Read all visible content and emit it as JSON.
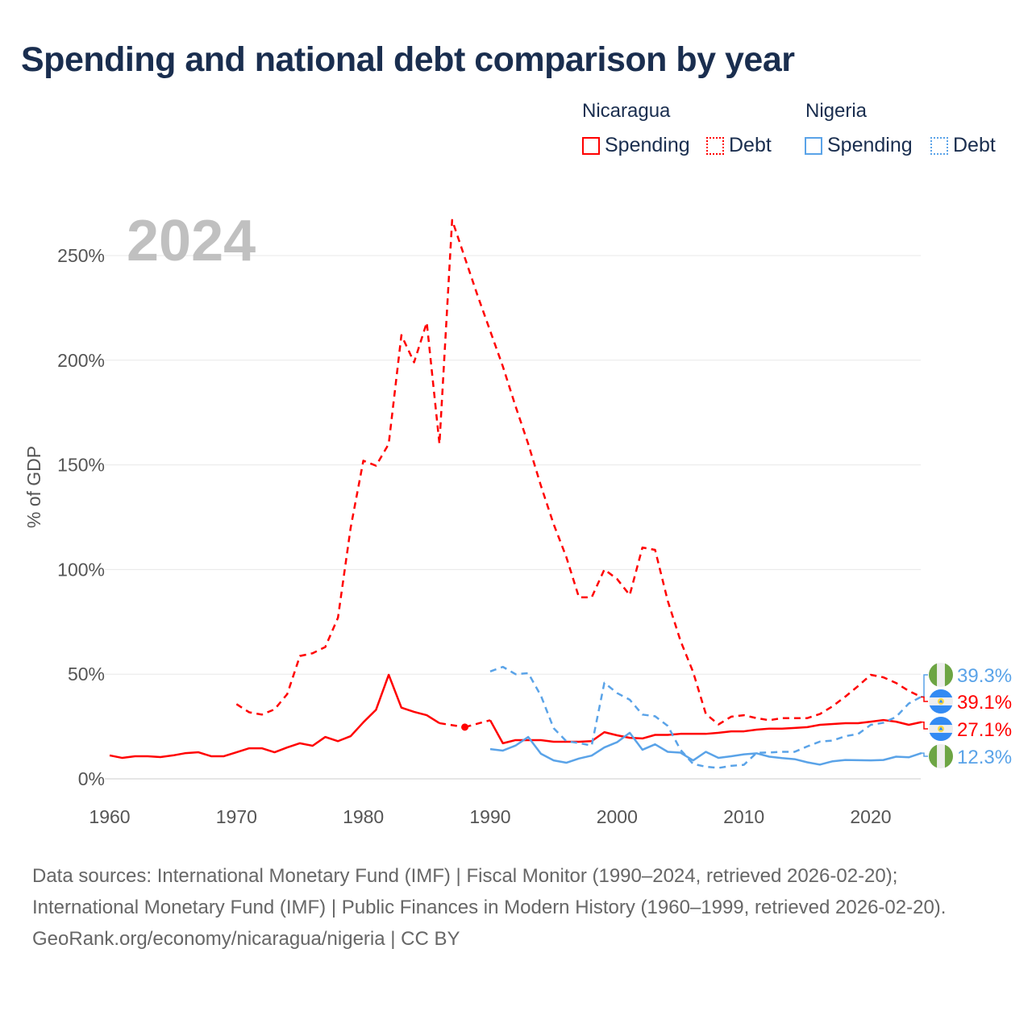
{
  "title": "Spending and national debt comparison by year",
  "legend": {
    "groups": [
      {
        "country": "Nicaragua",
        "color": "#ff0000",
        "items": [
          "Spending",
          "Debt"
        ]
      },
      {
        "country": "Nigeria",
        "color": "#5aa3e8",
        "items": [
          "Spending",
          "Debt"
        ]
      }
    ]
  },
  "footer": {
    "sources": "Data sources: International Monetary Fund (IMF) | Fiscal Monitor (1990–2024, retrieved 2026-02-20); International Monetary Fund (IMF) | Public Finances in Modern History (1960–1999, retrieved 2026-02-20).",
    "credit": "GeoRank.org/economy/nicaragua/nigeria | CC BY"
  },
  "chart_data": {
    "type": "line",
    "title": "Spending and national debt comparison by year",
    "year_watermark": "2024",
    "xlabel": "",
    "ylabel": "% of GDP",
    "xlim": [
      1960,
      2024
    ],
    "ylim": [
      0,
      260
    ],
    "x_ticks": [
      1960,
      1970,
      1980,
      1990,
      2000,
      2010,
      2020
    ],
    "y_ticks": [
      0,
      50,
      100,
      150,
      200,
      250
    ],
    "y_tick_labels": [
      "0%",
      "50%",
      "100%",
      "150%",
      "200%",
      "250%"
    ],
    "grid": true,
    "legend_position": "top-right",
    "series": [
      {
        "name": "Nicaragua Spending",
        "color": "#ff0000",
        "style": "solid",
        "start": 1960,
        "values": [
          11.2,
          10,
          10.8,
          10.8,
          10.4,
          11.2,
          12.3,
          12.7,
          10.8,
          10.8,
          12.7,
          14.6,
          14.6,
          12.7,
          15,
          17,
          15.8,
          20,
          18,
          20.4,
          27,
          33,
          49.7,
          34,
          32,
          30.4,
          26.6,
          null,
          24.7,
          null,
          28,
          17,
          18.5,
          18.5,
          18.5,
          17.7,
          17.7,
          17.7,
          18,
          22.3,
          20.8,
          19.6,
          19.3,
          21,
          21,
          21.5,
          21.5,
          21.5,
          22,
          22.7,
          22.7,
          23.5,
          24,
          24,
          24.3,
          24.7,
          25.8,
          26.2,
          26.6,
          26.6,
          27.3,
          28.1,
          27.3,
          25.8,
          27.1
        ],
        "end_label": "27.1%"
      },
      {
        "name": "Nicaragua Debt",
        "color": "#ff0000",
        "style": "dashed",
        "start": 1970,
        "values": [
          35.7,
          31.8,
          30.7,
          33.2,
          40.5,
          58.7,
          60,
          63,
          77,
          120,
          152,
          149.6,
          160,
          212,
          199,
          218,
          160,
          267,
          249,
          231,
          214,
          197,
          178,
          160,
          140,
          121.7,
          106,
          86.7,
          86.7,
          100,
          95.5,
          87.8,
          110.5,
          109.4,
          85,
          66,
          51,
          31,
          26,
          29.7,
          30.4,
          29,
          28,
          29,
          29,
          29,
          31,
          34.7,
          39.3,
          44.3,
          49.7,
          48.5,
          45.8,
          42,
          39.1
        ],
        "end_label": "39.1%"
      },
      {
        "name": "Nigeria Spending",
        "color": "#5aa3e8",
        "style": "solid",
        "start": 1990,
        "values": [
          14.2,
          13.5,
          15.9,
          20,
          12,
          8.8,
          7.7,
          9.7,
          11.1,
          15,
          17.5,
          22,
          13.9,
          16.5,
          12.9,
          12.5,
          8.8,
          12.9,
          10,
          10.8,
          11.7,
          12.2,
          10.6,
          9.9,
          9.4,
          7.9,
          6.8,
          8.4,
          9,
          8.9,
          8.8,
          9,
          10.6,
          10.3,
          12.3
        ],
        "end_label": "12.3%"
      },
      {
        "name": "Nigeria Debt",
        "color": "#5aa3e8",
        "style": "dashed",
        "start": 1990,
        "values": [
          51.3,
          53.5,
          50,
          50.5,
          39.7,
          24.2,
          18,
          17.1,
          15.9,
          45.9,
          41,
          37.8,
          30.7,
          29.9,
          25.3,
          13.9,
          7.1,
          5.8,
          5.2,
          6.2,
          6.7,
          12.4,
          12.6,
          12.9,
          12.9,
          15.5,
          17.8,
          18.3,
          20.4,
          21.4,
          25.8,
          26.8,
          29.6,
          36,
          39.3
        ],
        "end_label": "39.3%"
      }
    ]
  }
}
